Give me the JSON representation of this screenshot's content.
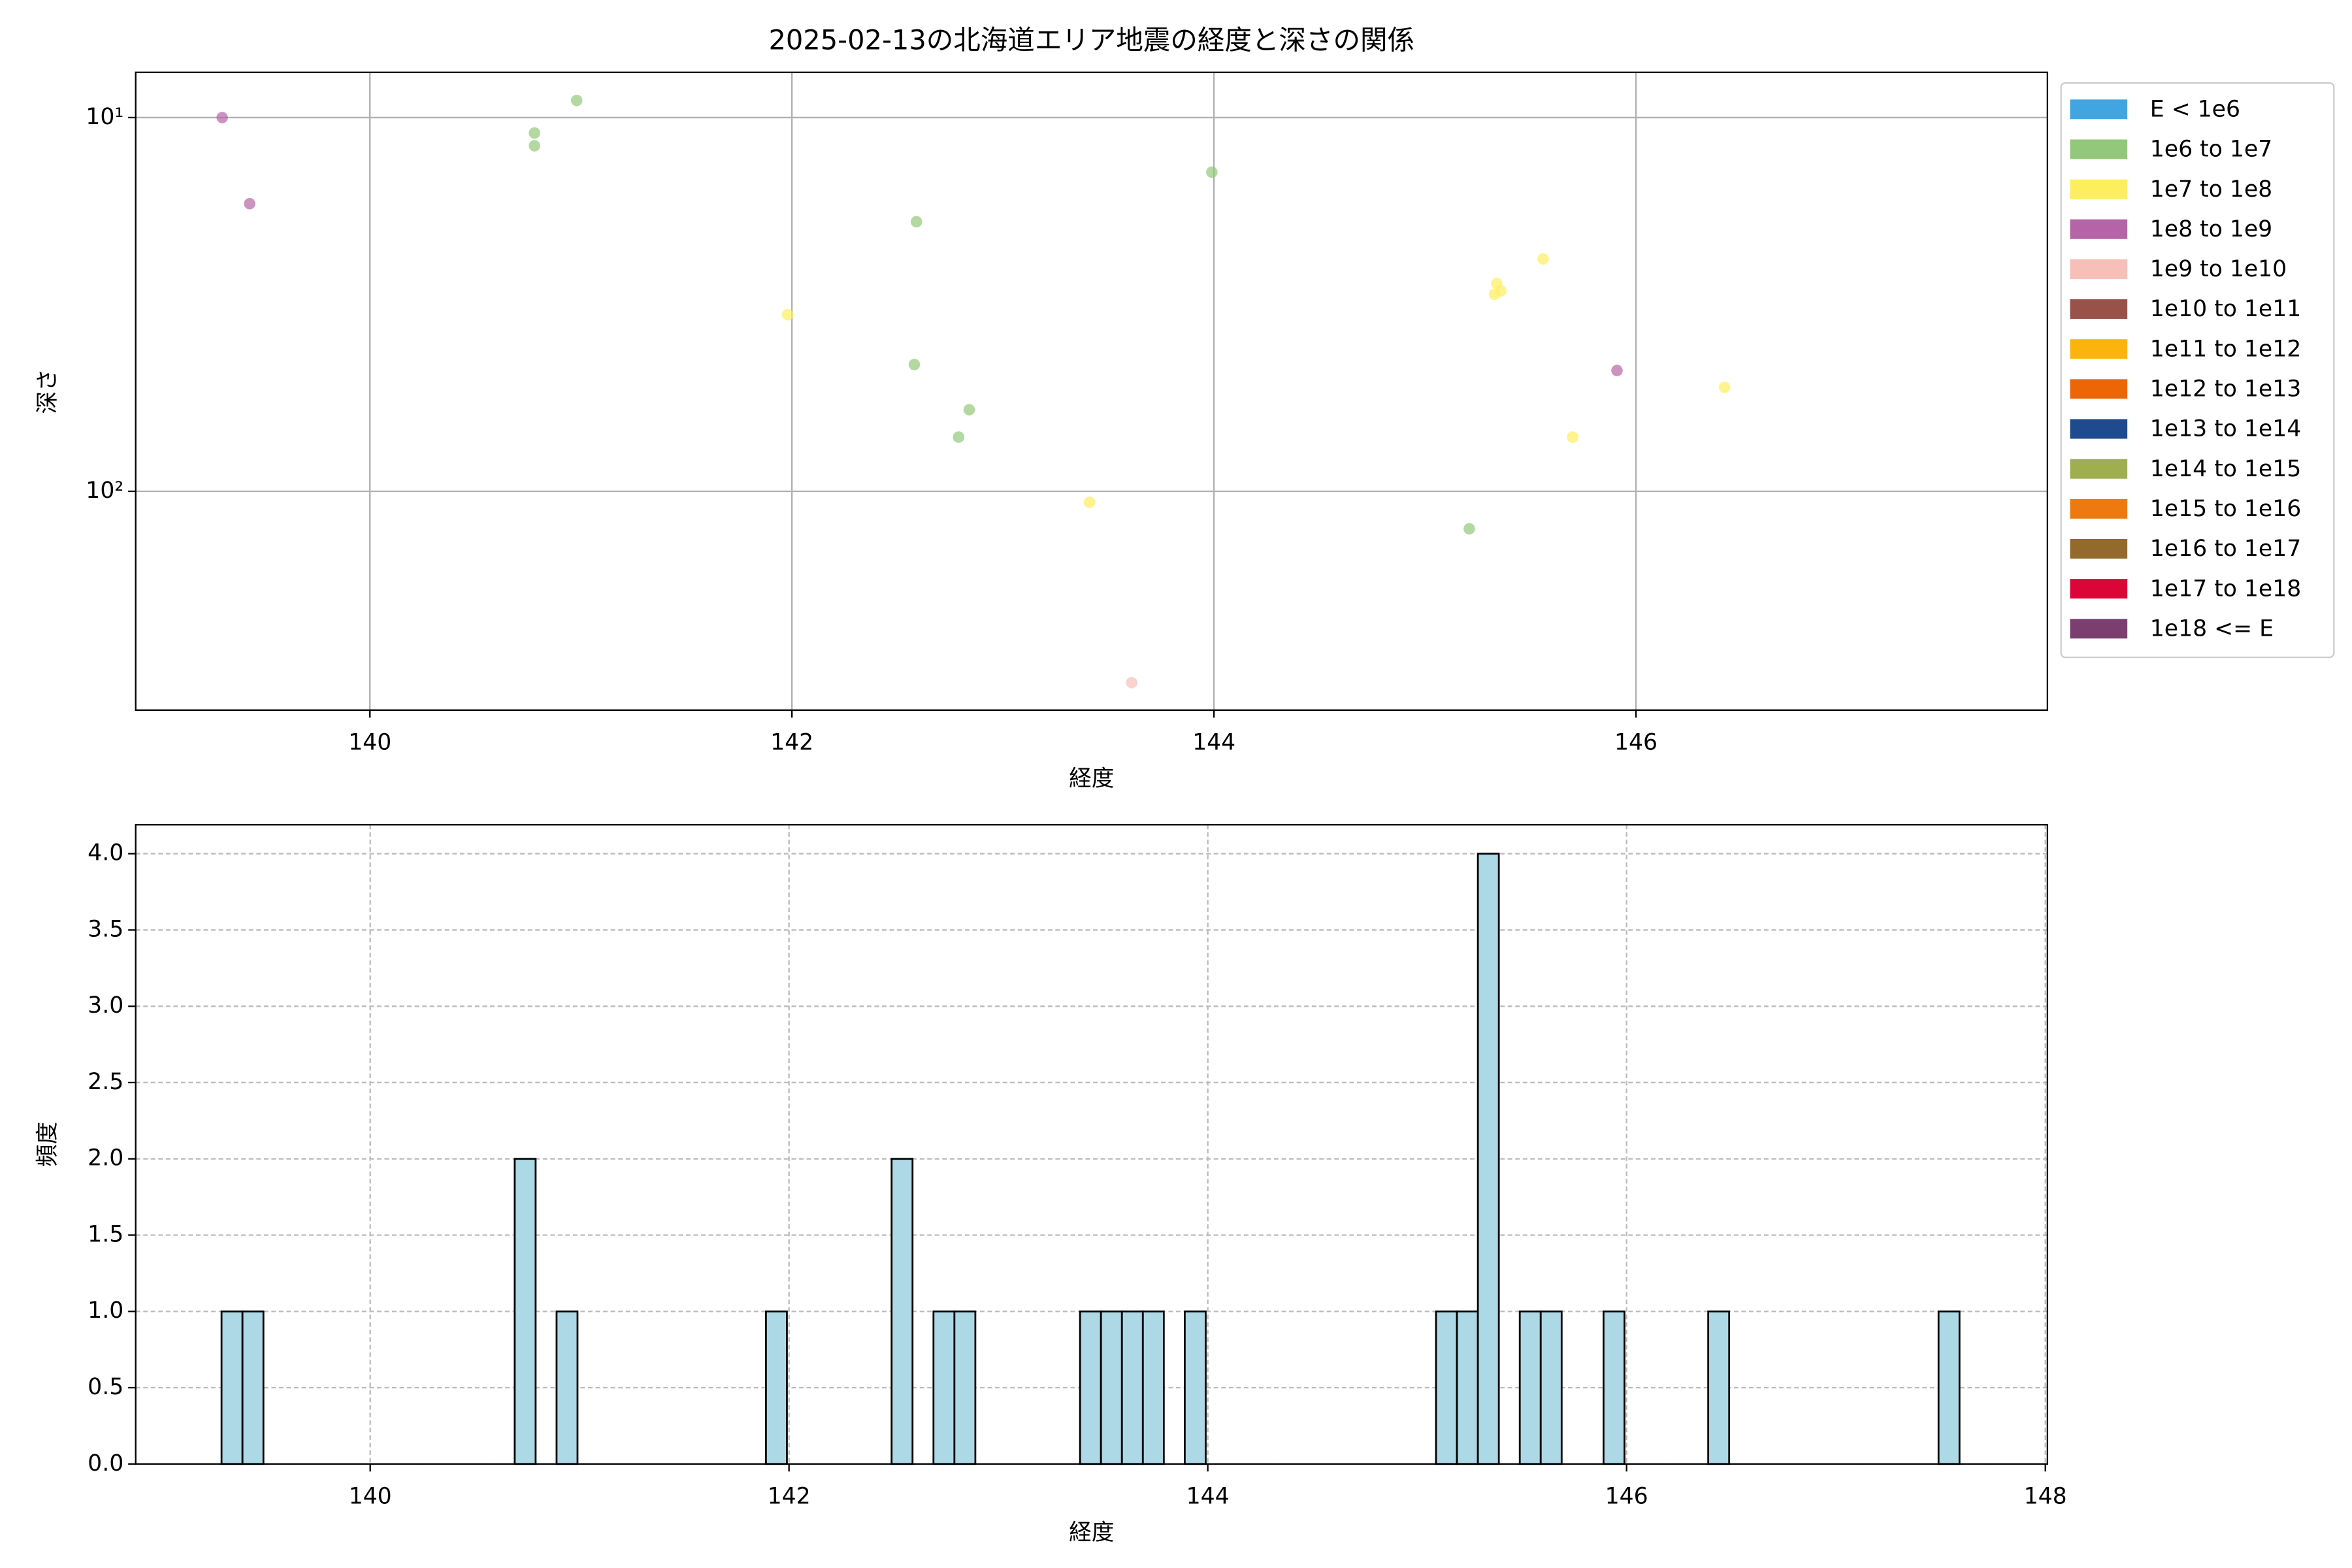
{
  "chart_data": [
    {
      "type": "scatter",
      "title": "2025-02-13の北海道エリア地震の経度と深さの関係",
      "xlabel": "経度",
      "ylabel": "深さ",
      "xlim": [
        138.89,
        147.95
      ],
      "xticks": [
        140,
        142,
        144,
        146
      ],
      "ylim": [
        7.57,
        385
      ],
      "yscale": "log",
      "yaxis_inverted": true,
      "yticks": [
        {
          "value": 10,
          "label": "10¹"
        },
        {
          "value": 100,
          "label": "10²"
        }
      ],
      "grid": true,
      "grid_linestyle": "solid",
      "legend_loc": "outside upper right",
      "series": [
        {
          "name": "E < 1e6",
          "color": "#41a5e1",
          "x": [],
          "values": []
        },
        {
          "name": "1e6 to 1e7",
          "color": "#93c87a",
          "x": [
            140.78,
            140.78,
            140.98,
            142.59,
            142.58,
            142.84,
            142.79,
            143.99,
            145.21
          ],
          "values": [
            11.0,
            11.9,
            9.0,
            19.0,
            45.8,
            60.5,
            71.6,
            14.0,
            126
          ]
        },
        {
          "name": "1e7 to 1e8",
          "color": "#fdee5d",
          "x": [
            141.98,
            143.41,
            145.34,
            145.36,
            145.33,
            145.56,
            145.7,
            146.42
          ],
          "values": [
            33.7,
            107,
            27.8,
            29.1,
            29.7,
            23.9,
            71.6,
            52.7
          ]
        },
        {
          "name": "1e8 to 1e9",
          "color": "#b565a7",
          "x": [
            139.3,
            139.43,
            145.91
          ],
          "values": [
            10.0,
            17.0,
            47.5
          ]
        },
        {
          "name": "1e9 to 1e10",
          "color": "#f6c0b9",
          "x": [
            143.61
          ],
          "values": [
            325
          ]
        },
        {
          "name": "1e10 to 1e11",
          "color": "#985249",
          "x": [],
          "values": []
        },
        {
          "name": "1e11 to 1e12",
          "color": "#fbb40b",
          "x": [],
          "values": []
        },
        {
          "name": "1e12 to 1e13",
          "color": "#ec6608",
          "x": [],
          "values": []
        },
        {
          "name": "1e13 to 1e14",
          "color": "#1e4a8f",
          "x": [],
          "values": []
        },
        {
          "name": "1e14 to 1e15",
          "color": "#9fae4e",
          "x": [],
          "values": []
        },
        {
          "name": "1e15 to 1e16",
          "color": "#ec7a10",
          "x": [],
          "values": []
        },
        {
          "name": "1e16 to 1e17",
          "color": "#936a2b",
          "x": [],
          "values": []
        },
        {
          "name": "1e17 to 1e18",
          "color": "#dc0538",
          "x": [],
          "values": []
        },
        {
          "name": "1e18 <= E",
          "color": "#7a3f6e",
          "x": [],
          "values": []
        }
      ]
    },
    {
      "type": "histogram",
      "xlabel": "経度",
      "ylabel": "頻度",
      "xlim": [
        138.88,
        148.01
      ],
      "xticks": [
        140,
        142,
        144,
        146,
        148
      ],
      "ylim": [
        0,
        4.19
      ],
      "yticks": [
        {
          "value": 0,
          "label": "0.0"
        },
        0.5,
        {
          "value": 1,
          "label": "1.0"
        },
        1.5,
        {
          "value": 2,
          "label": "2.0"
        },
        2.5,
        {
          "value": 3,
          "label": "3.0"
        },
        3.5,
        {
          "value": 4,
          "label": "4.0"
        }
      ],
      "grid": true,
      "grid_linestyle": "dashed",
      "color": "#add8e6",
      "edgecolor": "#000000",
      "bins": [
        139.29,
        139.39,
        139.49,
        139.59,
        139.69,
        139.79,
        139.89,
        139.99,
        140.09,
        140.19,
        140.29,
        140.39,
        140.49,
        140.59,
        140.69,
        140.79,
        140.89,
        140.99,
        141.09,
        141.19,
        141.29,
        141.39,
        141.49,
        141.59,
        141.69,
        141.79,
        141.89,
        141.99,
        142.09,
        142.19,
        142.29,
        142.39,
        142.49,
        142.59,
        142.69,
        142.79,
        142.89,
        142.99,
        143.09,
        143.19,
        143.29,
        143.39,
        143.49,
        143.59,
        143.69,
        143.79,
        143.89,
        143.99,
        144.09,
        144.19,
        144.29,
        144.39,
        144.49,
        144.59,
        144.69,
        144.79,
        144.89,
        144.99,
        145.09,
        145.19,
        145.29,
        145.39,
        145.49,
        145.59,
        145.69,
        145.79,
        145.89,
        145.99,
        146.09,
        146.19,
        146.29,
        146.39,
        146.49,
        146.59,
        146.69,
        146.79,
        146.89,
        146.99,
        147.09,
        147.19,
        147.29,
        147.39,
        147.49,
        147.59
      ],
      "counts": [
        1,
        1,
        0,
        0,
        0,
        0,
        0,
        0,
        0,
        0,
        0,
        0,
        0,
        0,
        2,
        0,
        1,
        0,
        0,
        0,
        0,
        0,
        0,
        0,
        0,
        0,
        1,
        0,
        0,
        0,
        0,
        0,
        2,
        0,
        1,
        1,
        0,
        0,
        0,
        0,
        0,
        1,
        1,
        1,
        1,
        0,
        1,
        0,
        0,
        0,
        0,
        0,
        0,
        0,
        0,
        0,
        0,
        0,
        1,
        1,
        4,
        0,
        1,
        1,
        0,
        0,
        1,
        0,
        0,
        0,
        0,
        1,
        0,
        0,
        0,
        0,
        0,
        0,
        0,
        0,
        0,
        0,
        1
      ]
    }
  ]
}
